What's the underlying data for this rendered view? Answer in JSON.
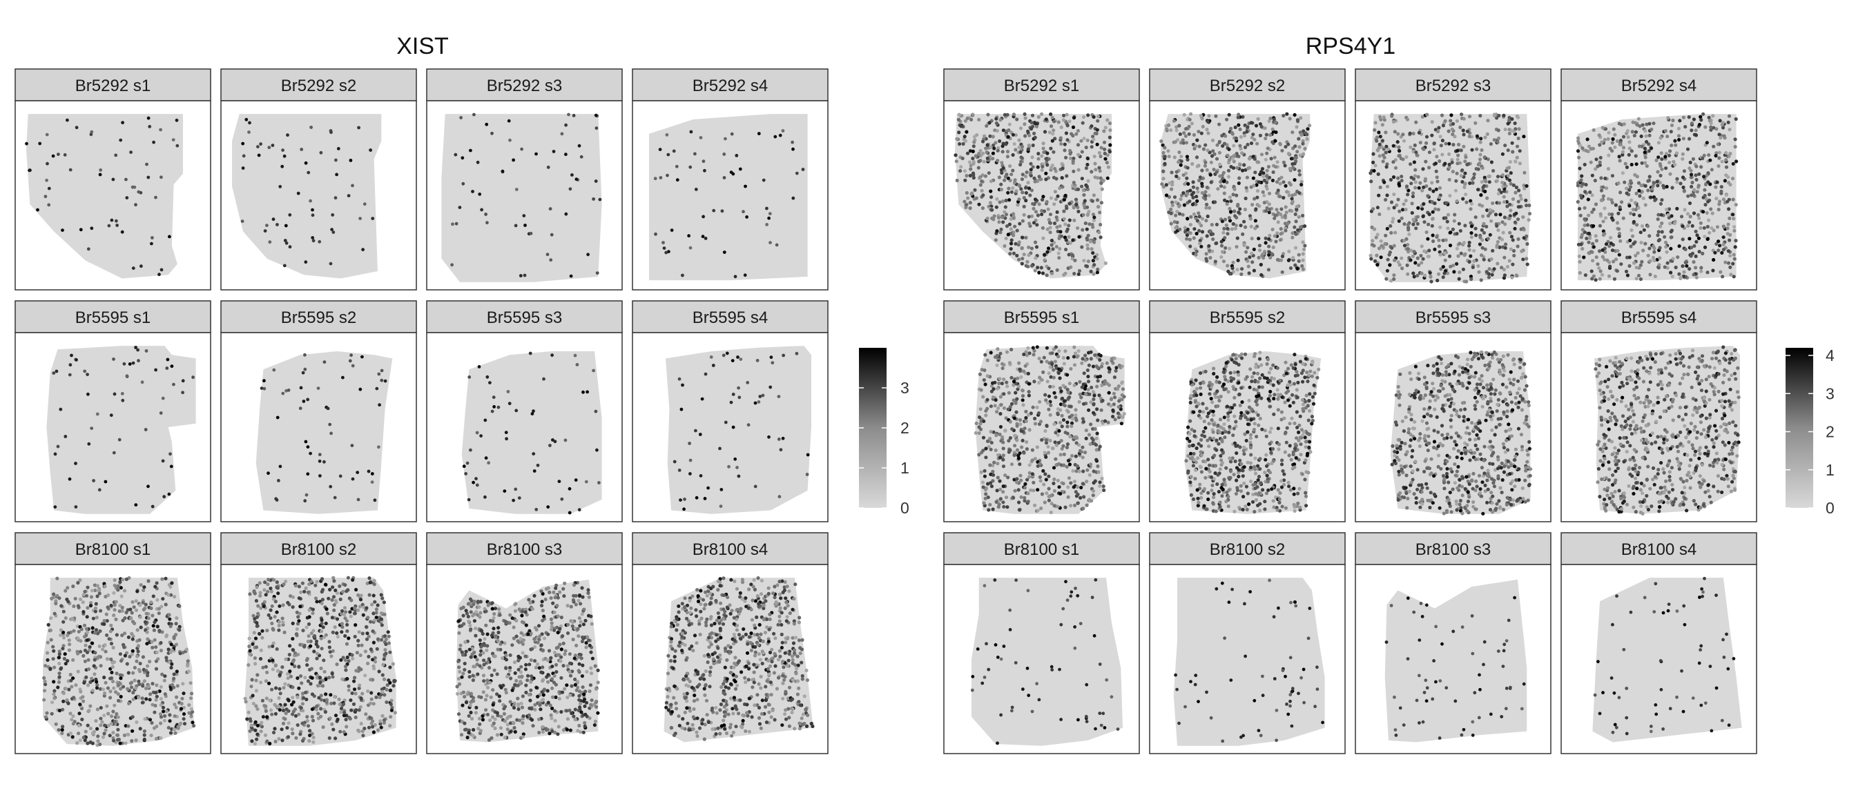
{
  "chart_data": [
    {
      "type": "heatmap",
      "title": "XIST",
      "facets": [
        {
          "label": "Br5292 s1",
          "expression_level": "sparse",
          "shape": "A"
        },
        {
          "label": "Br5292 s2",
          "expression_level": "sparse",
          "shape": "B"
        },
        {
          "label": "Br5292 s3",
          "expression_level": "sparse",
          "shape": "C"
        },
        {
          "label": "Br5292 s4",
          "expression_level": "sparse",
          "shape": "D"
        },
        {
          "label": "Br5595 s1",
          "expression_level": "sparse",
          "shape": "E"
        },
        {
          "label": "Br5595 s2",
          "expression_level": "sparse",
          "shape": "F"
        },
        {
          "label": "Br5595 s3",
          "expression_level": "sparse",
          "shape": "G"
        },
        {
          "label": "Br5595 s4",
          "expression_level": "sparse",
          "shape": "H"
        },
        {
          "label": "Br8100 s1",
          "expression_level": "high",
          "shape": "I"
        },
        {
          "label": "Br8100 s2",
          "expression_level": "high",
          "shape": "J"
        },
        {
          "label": "Br8100 s3",
          "expression_level": "high",
          "shape": "K"
        },
        {
          "label": "Br8100 s4",
          "expression_level": "high",
          "shape": "L"
        }
      ],
      "legend": {
        "ticks": [
          0,
          1,
          2,
          3
        ],
        "range": [
          0,
          4
        ],
        "low_color": "#d9d9d9",
        "high_color": "#000000"
      }
    },
    {
      "type": "heatmap",
      "title": "RPS4Y1",
      "facets": [
        {
          "label": "Br5292 s1",
          "expression_level": "high",
          "shape": "A"
        },
        {
          "label": "Br5292 s2",
          "expression_level": "high",
          "shape": "B"
        },
        {
          "label": "Br5292 s3",
          "expression_level": "high",
          "shape": "C"
        },
        {
          "label": "Br5292 s4",
          "expression_level": "high",
          "shape": "D"
        },
        {
          "label": "Br5595 s1",
          "expression_level": "high",
          "shape": "E"
        },
        {
          "label": "Br5595 s2",
          "expression_level": "high",
          "shape": "F"
        },
        {
          "label": "Br5595 s3",
          "expression_level": "high",
          "shape": "G"
        },
        {
          "label": "Br5595 s4",
          "expression_level": "high",
          "shape": "H"
        },
        {
          "label": "Br8100 s1",
          "expression_level": "sparse",
          "shape": "I"
        },
        {
          "label": "Br8100 s2",
          "expression_level": "sparse",
          "shape": "J"
        },
        {
          "label": "Br8100 s3",
          "expression_level": "sparse",
          "shape": "K"
        },
        {
          "label": "Br8100 s4",
          "expression_level": "sparse",
          "shape": "L"
        }
      ],
      "legend": {
        "ticks": [
          0,
          1,
          2,
          3,
          4
        ],
        "range": [
          0,
          4.2
        ],
        "low_color": "#d9d9d9",
        "high_color": "#000000"
      }
    }
  ],
  "colors": {
    "tissue": "#d9d9d9",
    "strip_fill": "#d4d4d4",
    "panel_border": "#333333",
    "spot_low": "#d9d9d9",
    "spot_high": "#000000"
  }
}
